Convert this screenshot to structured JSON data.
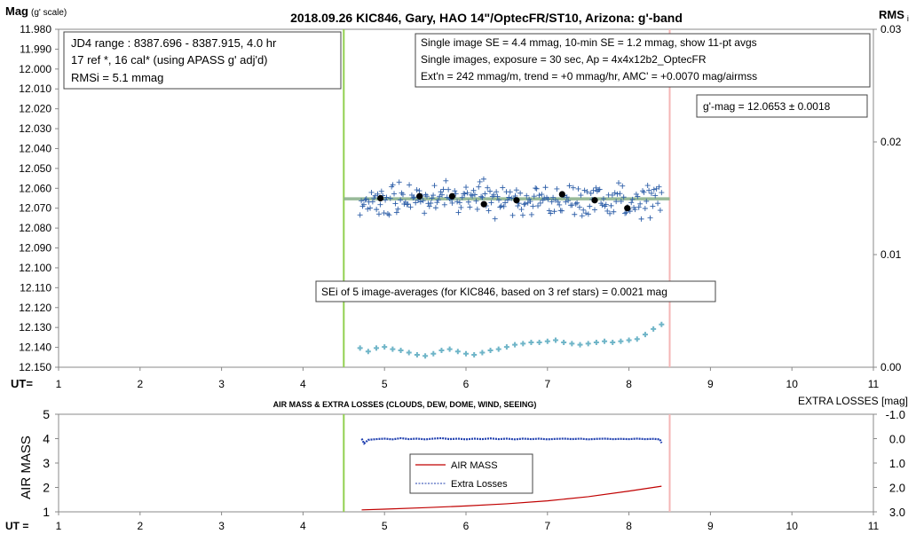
{
  "chart_data": [
    {
      "type": "scatter",
      "title": "2018.09.26  KIC846,  Gary, HAO 14\"/OptecFR/ST10,  Arizona:  g'-band",
      "ylabel_main": "Mag",
      "ylabel_sub": "(g' scale)",
      "y2label_main": "RMS",
      "y2label_sub": "i",
      "xlabel": "UT=",
      "ylim": [
        11.98,
        12.15
      ],
      "y_reversed": true,
      "y_ticks": [
        "11.980",
        "11.990",
        "12.000",
        "12.010",
        "12.020",
        "12.030",
        "12.040",
        "12.050",
        "12.060",
        "12.070",
        "12.080",
        "12.090",
        "12.100",
        "12.110",
        "12.120",
        "12.130",
        "12.140",
        "12.150"
      ],
      "y2lim": [
        0.0,
        0.03
      ],
      "y2_ticks": [
        "0.03",
        "0.02",
        "0.01",
        "0.00"
      ],
      "xlim": [
        1,
        11
      ],
      "x_ticks": [
        "1",
        "2",
        "3",
        "4",
        "5",
        "6",
        "7",
        "8",
        "9",
        "10",
        "11"
      ],
      "vlines": [
        {
          "x": 4.5,
          "color": "#92D050"
        },
        {
          "x": 8.5,
          "color": "#F4B6B6"
        }
      ],
      "info_left": [
        "JD4 range : 8387.696 - 8387.915,  4.0  hr",
        "17 ref *,  16 cal* (using APASS g' adj'd)",
        "RMSi = 5.1 mmag"
      ],
      "info_right": [
        "Single image SE = 4.4 mmag, 10-min SE = 1.2 mmag, show  11-pt avgs",
        "Single images, exposure = 30 sec, Ap = 4x4x12b2_OptecFR",
        "Ext'n = 242 mmag/m, trend =  +0 mmag/hr, AMC' = +0.0070 mag/airmss"
      ],
      "gmag_label": "g'-mag = 12.0653 ± 0.0018",
      "sei_label": "SEi of 5 image-averages (for KIC846, based on 3 ref stars) = 0.0021  mag",
      "fit_line": {
        "x": [
          4.5,
          8.5
        ],
        "y": [
          12.0653,
          12.0653
        ],
        "color": "#8DB38D"
      },
      "averages": {
        "x": [
          4.95,
          5.43,
          5.83,
          6.22,
          6.62,
          7.18,
          7.58,
          7.98
        ],
        "y": [
          12.065,
          12.064,
          12.064,
          12.068,
          12.066,
          12.063,
          12.066,
          12.07
        ]
      },
      "singles_seed": 846,
      "singles_count": 240,
      "singles_xrange": [
        4.7,
        8.4
      ],
      "singles_color": "#2E5FA8",
      "rms_series": {
        "color": "#6FB5C8",
        "x": [
          4.7,
          4.8,
          4.9,
          5.0,
          5.1,
          5.2,
          5.3,
          5.4,
          5.5,
          5.6,
          5.7,
          5.8,
          5.9,
          6.0,
          6.1,
          6.2,
          6.3,
          6.4,
          6.5,
          6.6,
          6.7,
          6.8,
          6.9,
          7.0,
          7.1,
          7.2,
          7.3,
          7.4,
          7.5,
          7.6,
          7.7,
          7.8,
          7.9,
          8.0,
          8.1,
          8.2,
          8.3,
          8.4
        ],
        "y": [
          0.0017,
          0.0014,
          0.0017,
          0.0018,
          0.0016,
          0.0015,
          0.0013,
          0.0011,
          0.001,
          0.0012,
          0.0015,
          0.0016,
          0.0014,
          0.0012,
          0.0011,
          0.0013,
          0.0015,
          0.0016,
          0.0018,
          0.002,
          0.0021,
          0.0022,
          0.0022,
          0.0023,
          0.0024,
          0.0022,
          0.0021,
          0.002,
          0.0021,
          0.0022,
          0.0023,
          0.0022,
          0.0023,
          0.0024,
          0.0025,
          0.0029,
          0.0034,
          0.0038
        ]
      }
    },
    {
      "type": "line",
      "title": "AIR MASS & EXTRA LOSSES (CLOUDS, DEW, DOME, WIND, SEEING)",
      "ylabel": "AIR MASS",
      "y2label": "EXTRA LOSSES [mag]",
      "xlabel": "UT =",
      "ylim": [
        1,
        5
      ],
      "y_ticks": [
        "5",
        "4",
        "3",
        "2",
        "1"
      ],
      "y2lim": [
        -1.0,
        3.0
      ],
      "y2_ticks": [
        "-1.0",
        "0.0",
        "1.0",
        "2.0",
        "3.0"
      ],
      "xlim": [
        1,
        11
      ],
      "x_ticks": [
        "1",
        "2",
        "3",
        "4",
        "5",
        "6",
        "7",
        "8",
        "9",
        "10",
        "11"
      ],
      "vlines": [
        {
          "x": 4.5,
          "color": "#92D050"
        },
        {
          "x": 8.5,
          "color": "#F4B6B6"
        }
      ],
      "series": [
        {
          "name": "AIR MASS",
          "color": "#C00000",
          "x": [
            4.72,
            5.0,
            5.5,
            6.0,
            6.5,
            7.0,
            7.5,
            8.0,
            8.4
          ],
          "y": [
            1.08,
            1.11,
            1.17,
            1.24,
            1.33,
            1.45,
            1.62,
            1.85,
            2.05
          ]
        },
        {
          "name": "Extra Losses",
          "color": "#1F3FAF",
          "x": [
            4.72,
            4.75,
            4.8,
            4.9,
            5.0,
            5.1,
            5.2,
            5.3,
            5.4,
            5.5,
            5.6,
            5.7,
            5.8,
            5.9,
            6.0,
            6.1,
            6.2,
            6.3,
            6.4,
            6.5,
            6.6,
            6.7,
            6.8,
            6.9,
            7.0,
            7.1,
            7.2,
            7.3,
            7.4,
            7.5,
            7.6,
            7.7,
            7.8,
            7.9,
            8.0,
            8.1,
            8.2,
            8.3,
            8.38,
            8.4
          ],
          "y": [
            0.0,
            0.2,
            0.05,
            0.02,
            0.0,
            0.03,
            -0.02,
            0.02,
            0.0,
            0.03,
            0.0,
            -0.02,
            0.02,
            0.0,
            0.03,
            0.0,
            0.02,
            -0.01,
            0.02,
            0.0,
            0.03,
            0.0,
            0.02,
            0.0,
            0.03,
            0.01,
            0.0,
            0.02,
            0.0,
            0.03,
            0.01,
            0.0,
            0.02,
            0.01,
            0.02,
            0.0,
            0.02,
            0.01,
            0.03,
            0.18
          ]
        }
      ]
    }
  ]
}
